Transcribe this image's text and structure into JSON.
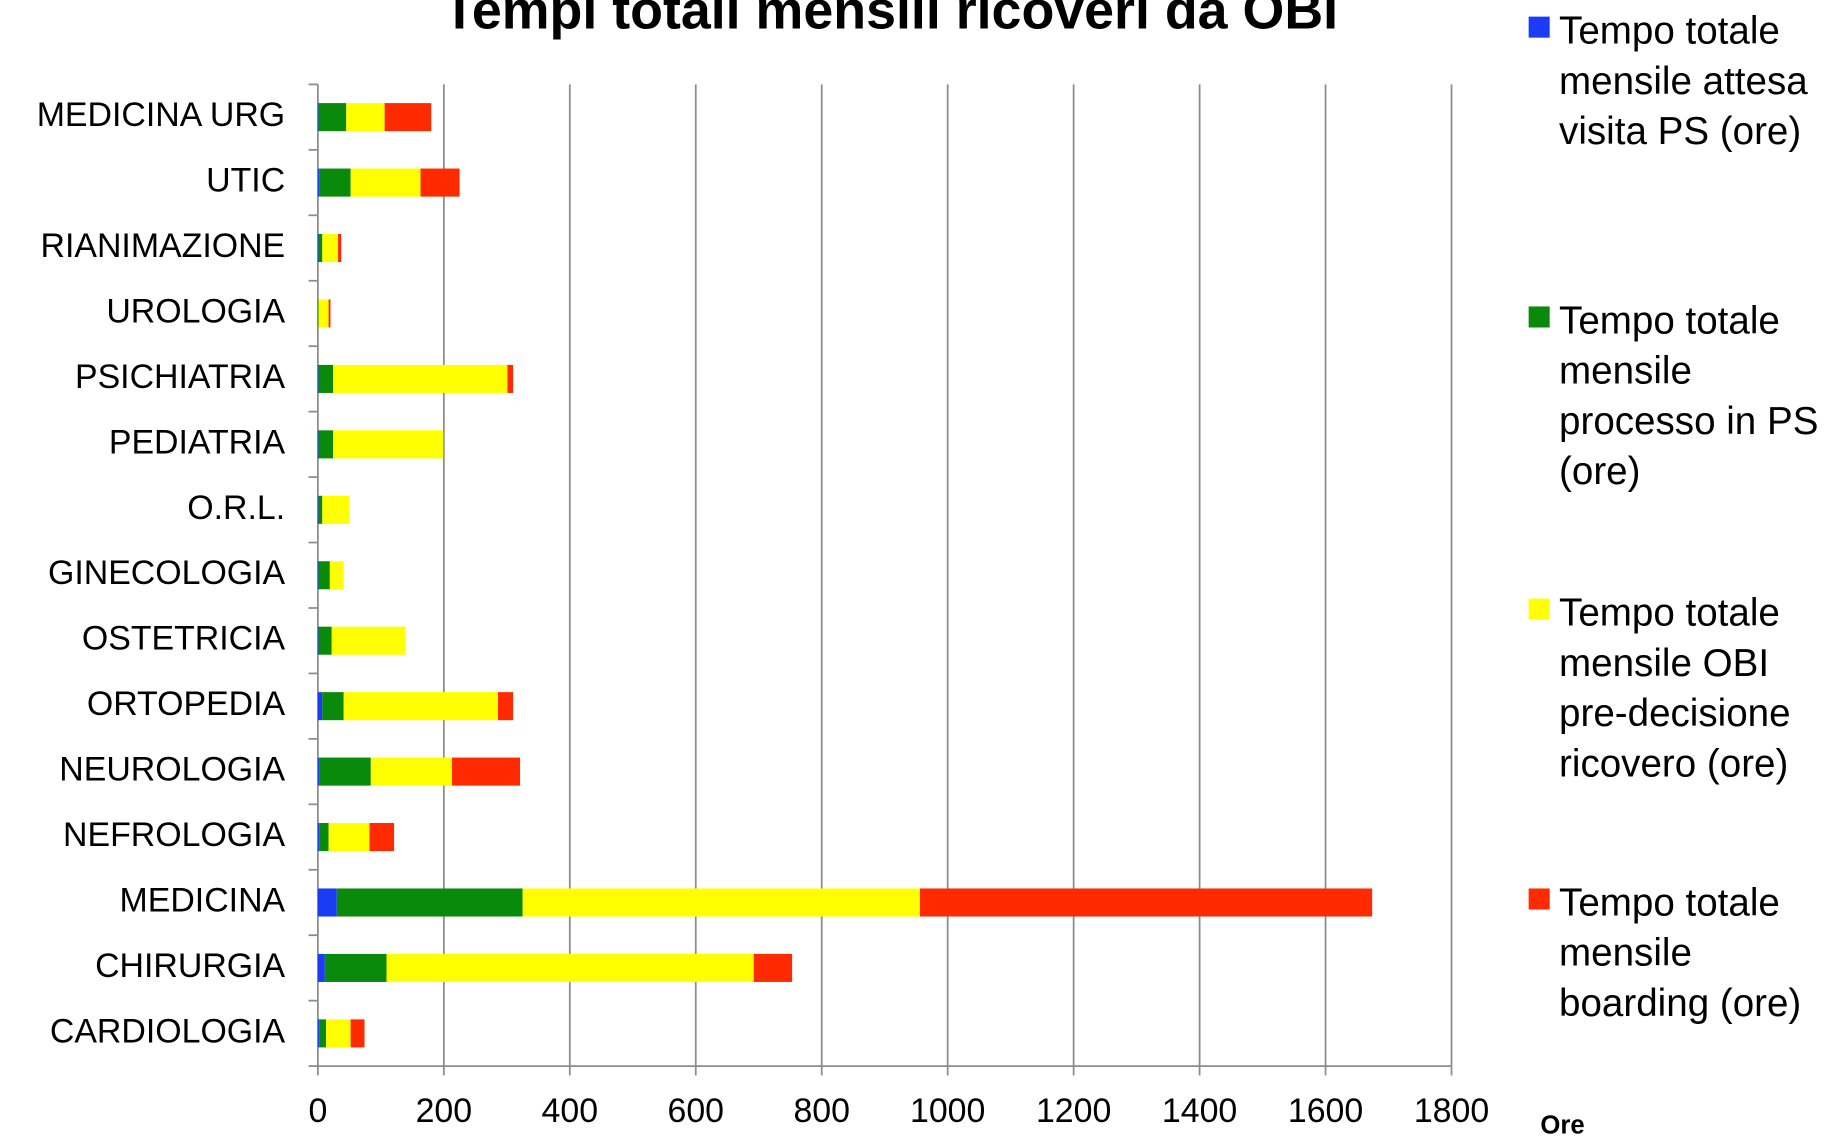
{
  "chart_data": {
    "type": "stacked-bar-horizontal",
    "title": "Tempi totali mensili ricoveri da OBI",
    "x_axis_label": "Ore",
    "categories": [
      "CARDIOLOGIA",
      "CHIRURGIA",
      "MEDICINA",
      "NEFROLOGIA",
      "NEUROLOGIA",
      "ORTOPEDIA",
      "OSTETRICIA",
      "GINECOLOGIA",
      "O.R.L.",
      "PEDIATRIA",
      "PSICHIATRIA",
      "UROLOGIA",
      "RIANIMAZIONE",
      "UTIC",
      "MEDICINA URG"
    ],
    "series": [
      {
        "name": "Tempo totale mensile attesa visita PS (ore)",
        "color": "#1a3cf5",
        "values": [
          2,
          11,
          30,
          2,
          3,
          7,
          1,
          1,
          1,
          1,
          1,
          0,
          1,
          2,
          1
        ]
      },
      {
        "name": "Tempo totale mensile processo in PS (ore)",
        "color": "#0a8a0a",
        "values": [
          11,
          98,
          295,
          15,
          81,
          34,
          21,
          18,
          6,
          23,
          23,
          1,
          6,
          50,
          44
        ]
      },
      {
        "name": "Tempo totale mensile OBI pre-decisione ricovero (ore)",
        "color": "#ffff00",
        "values": [
          39,
          583,
          631,
          65,
          129,
          245,
          117,
          22,
          43,
          175,
          277,
          16,
          25,
          111,
          61
        ]
      },
      {
        "name": "Tempo totale mensile boarding (ore)",
        "color": "#ff2a00",
        "values": [
          22,
          61,
          718,
          39,
          108,
          24,
          0,
          0,
          0,
          0,
          9,
          3,
          5,
          62,
          74
        ]
      }
    ],
    "xlim": [
      0,
      1800
    ],
    "xticks": [
      0,
      200,
      400,
      600,
      800,
      1000,
      1200,
      1400,
      1600,
      1800
    ],
    "grid": true,
    "legend_position": "right"
  }
}
